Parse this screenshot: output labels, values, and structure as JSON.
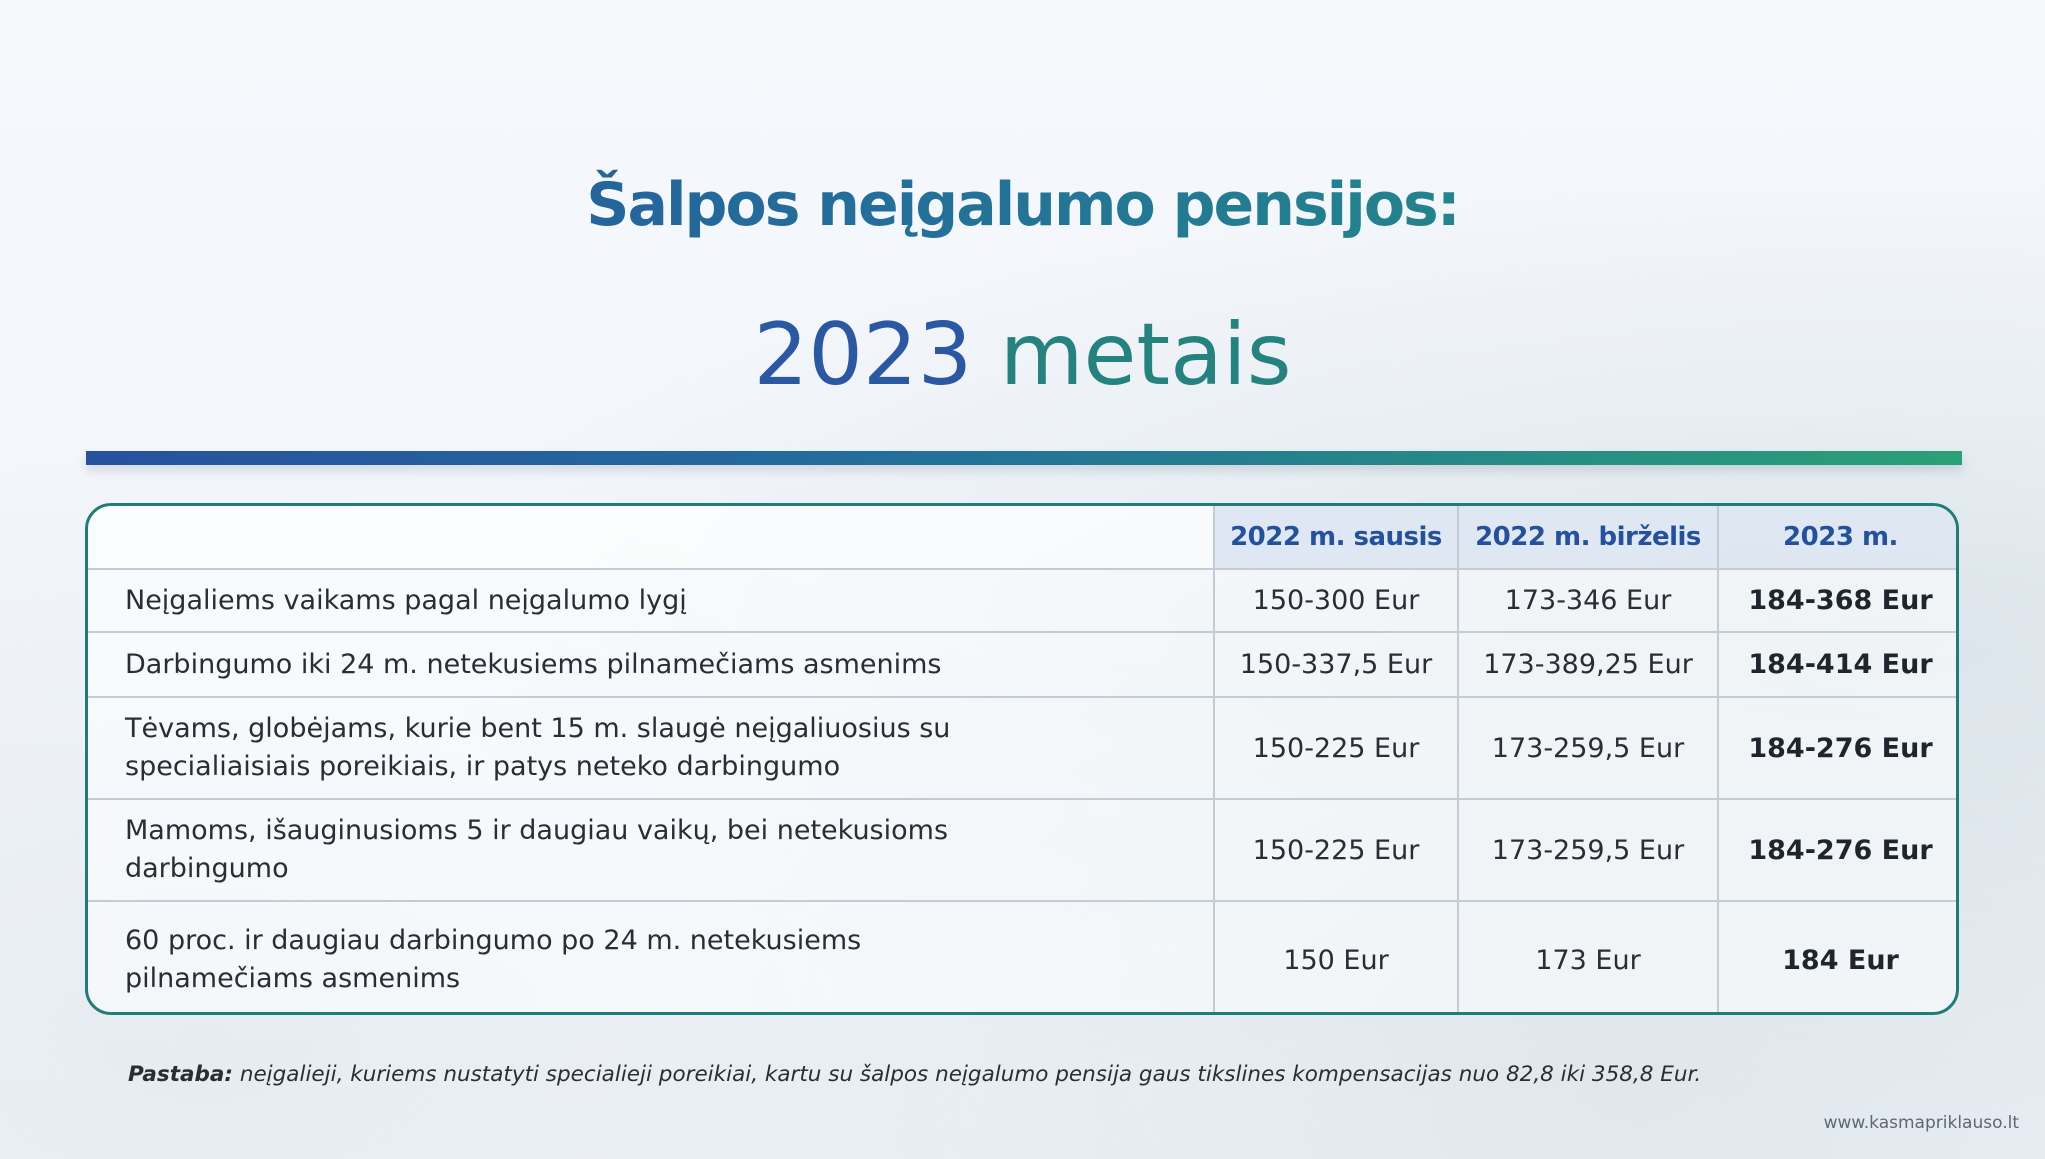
{
  "header": {
    "title": "Šalpos neįgalumo pensijos:",
    "subtitle_year": "2023",
    "subtitle_word": "metais"
  },
  "table": {
    "columns": [
      "",
      "2022 m. sausis",
      "2022 m. birželis",
      "2023 m."
    ],
    "rows": [
      {
        "label": "Neįgaliems vaikams pagal neįgalumo lygį",
        "v1": "150-300 Eur",
        "v2": "173-346 Eur",
        "v3": "184-368 Eur"
      },
      {
        "label": "Darbingumo iki 24 m. netekusiems pilnamečiams asmenims",
        "v1": "150-337,5 Eur",
        "v2": "173-389,25 Eur",
        "v3": "184-414 Eur"
      },
      {
        "label": "Tėvams, globėjams, kurie bent 15 m. slaugė neįgaliuosius su specialiaisiais poreikiais, ir patys neteko darbingumo",
        "v1": "150-225 Eur",
        "v2": "173-259,5 Eur",
        "v3": "184-276 Eur"
      },
      {
        "label": "Mamoms, išauginusioms 5 ir daugiau vaikų, bei netekusioms darbingumo",
        "v1": "150-225 Eur",
        "v2": "173-259,5 Eur",
        "v3": "184-276 Eur"
      },
      {
        "label": "60 proc. ir daugiau darbingumo po 24 m. netekusiems pilnamečiams asmenims",
        "v1": "150 Eur",
        "v2": "173 Eur",
        "v3": "184 Eur"
      }
    ]
  },
  "note": {
    "label": "Pastaba:",
    "text": " neįgalieji, kuriems nustatyti specialieji poreikiai, kartu su šalpos neįgalumo pensija gaus tikslines  kompensacijas nuo 82,8 iki 358,8 Eur."
  },
  "footer": {
    "website": "www.kasmapriklauso.lt"
  }
}
